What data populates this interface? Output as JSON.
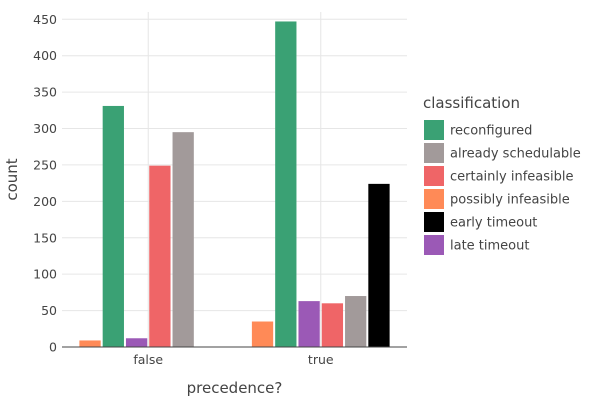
{
  "chart_data": {
    "type": "bar",
    "xlabel": "precedence?",
    "ylabel": "count",
    "categories": [
      "false",
      "true"
    ],
    "ylim": [
      0,
      460
    ],
    "yticks": [
      0,
      50,
      100,
      150,
      200,
      250,
      300,
      350,
      400,
      450
    ],
    "grid": true,
    "legend": {
      "title": "classification",
      "placement": "right"
    },
    "series": [
      {
        "name": "possibly infeasible",
        "color": "#ff8a57",
        "values": [
          9,
          35
        ]
      },
      {
        "name": "reconfigured",
        "color": "#3aa174",
        "values": [
          331,
          447
        ]
      },
      {
        "name": "late timeout",
        "color": "#9b59b6",
        "values": [
          12,
          63
        ]
      },
      {
        "name": "certainly infeasible",
        "color": "#ef6567",
        "values": [
          249,
          60
        ]
      },
      {
        "name": "already schedulable",
        "color": "#a29a9a",
        "values": [
          295,
          70
        ]
      },
      {
        "name": "early timeout",
        "color": "#000000",
        "values": [
          0,
          224
        ]
      }
    ],
    "legend_order": [
      "reconfigured",
      "already schedulable",
      "certainly infeasible",
      "possibly infeasible",
      "early timeout",
      "late timeout"
    ]
  }
}
